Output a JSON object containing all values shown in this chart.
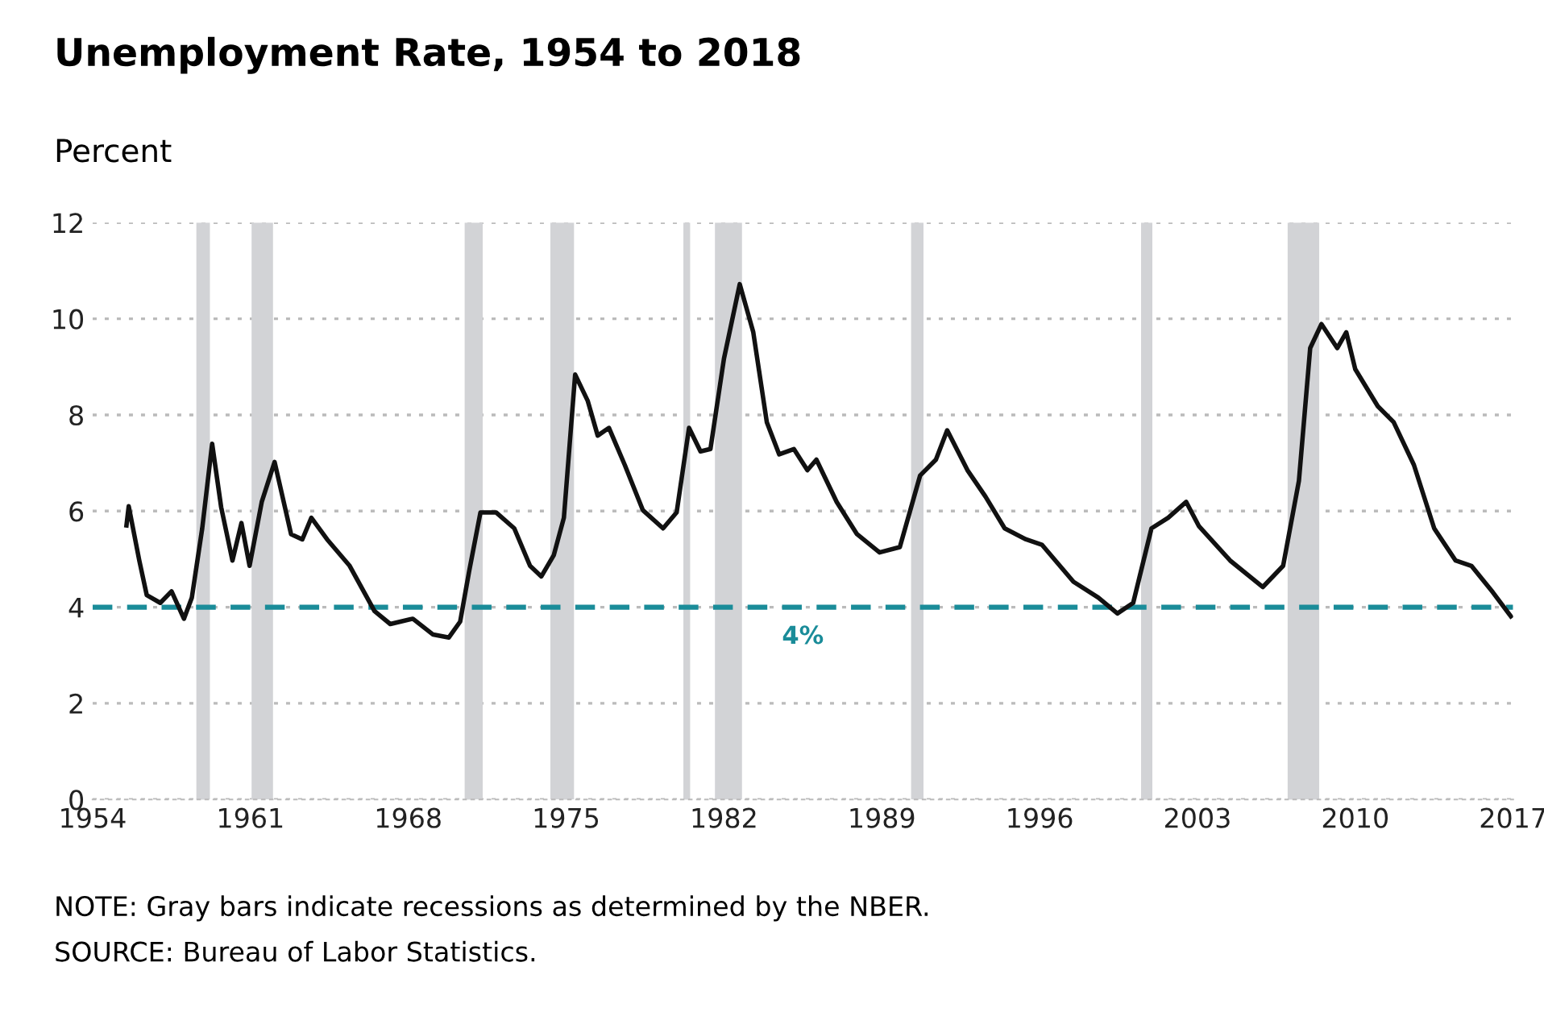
{
  "chart_data": {
    "type": "line",
    "title": "Unemployment Rate, 1954 to 2018",
    "ylabel": "Percent",
    "x": [
      1955.5,
      1955.6,
      1956.07,
      1956.4,
      1957.0,
      1957.5,
      1958.05,
      1958.4,
      1958.86,
      1959.3,
      1959.7,
      1960.2,
      1960.6,
      1960.96,
      1961.5,
      1962.07,
      1962.8,
      1963.3,
      1963.7,
      1964.4,
      1965.4,
      1966.5,
      1967.2,
      1968.2,
      1969.1,
      1969.8,
      1970.3,
      1970.7,
      1971.2,
      1971.9,
      1972.7,
      1973.4,
      1973.9,
      1974.45,
      1974.9,
      1975.4,
      1975.96,
      1976.4,
      1976.9,
      1977.6,
      1978.4,
      1979.3,
      1979.9,
      1980.45,
      1980.96,
      1981.4,
      1982.0,
      1982.7,
      1983.3,
      1983.9,
      1984.45,
      1985.1,
      1985.7,
      1986.1,
      1987.0,
      1987.9,
      1988.9,
      1989.8,
      1990.7,
      1991.4,
      1991.9,
      1992.8,
      1993.6,
      1994.45,
      1995.4,
      1996.1,
      1997.5,
      1998.6,
      1999.45,
      2000.15,
      2000.96,
      2001.7,
      2002.5,
      2003.06,
      2004.45,
      2005.9,
      2006.8,
      2007.5,
      2008.0,
      2008.5,
      2009.2,
      2009.6,
      2010.0,
      2011.0,
      2011.7,
      2012.6,
      2013.5,
      2014.45,
      2015.15,
      2016.1,
      2016.9
    ],
    "series": [
      {
        "color": "#111111",
        "values": [
          5.7,
          6.1,
          4.97,
          4.25,
          4.09,
          4.33,
          3.76,
          4.2,
          5.64,
          7.4,
          6.08,
          4.97,
          5.75,
          4.86,
          6.19,
          7.02,
          5.52,
          5.41,
          5.86,
          5.41,
          4.86,
          3.92,
          3.65,
          3.76,
          3.43,
          3.37,
          3.7,
          4.75,
          5.97,
          5.97,
          5.64,
          4.86,
          4.64,
          5.08,
          5.86,
          8.84,
          8.29,
          7.57,
          7.73,
          6.96,
          6.02,
          5.64,
          5.97,
          7.73,
          7.24,
          7.29,
          9.17,
          10.72,
          9.72,
          7.85,
          7.18,
          7.29,
          6.85,
          7.07,
          6.19,
          5.52,
          5.14,
          5.25,
          6.74,
          7.07,
          7.68,
          6.85,
          6.3,
          5.64,
          5.41,
          5.3,
          4.53,
          4.2,
          3.87,
          4.09,
          5.64,
          5.86,
          6.19,
          5.69,
          4.97,
          4.42,
          4.86,
          6.63,
          9.39,
          9.89,
          9.39,
          9.72,
          8.95,
          8.18,
          7.85,
          6.96,
          5.64,
          4.97,
          4.86,
          4.31,
          3.81
        ]
      }
    ],
    "xlim": [
      1954,
      2017
    ],
    "xticks": [
      1954,
      1961,
      1968,
      1975,
      1982,
      1989,
      1996,
      2003,
      2010,
      2017
    ],
    "ylim": [
      0,
      12
    ],
    "yticks": [
      0,
      2,
      4,
      6,
      8,
      10,
      12
    ],
    "grid": "y",
    "marker": "none",
    "line_style": "solid",
    "ref_lines": [
      {
        "axis": "y",
        "value": 4,
        "label": "4%",
        "color": "#1a8c99",
        "line_style": "dashed"
      }
    ],
    "bands": [
      {
        "axis": "x",
        "from": 1958.6,
        "to": 1959.2,
        "color": "#d2d3d6"
      },
      {
        "axis": "x",
        "from": 1961.05,
        "to": 1962.0,
        "color": "#d2d3d6"
      },
      {
        "axis": "x",
        "from": 1970.5,
        "to": 1971.3,
        "color": "#d2d3d6"
      },
      {
        "axis": "x",
        "from": 1974.3,
        "to": 1975.35,
        "color": "#d2d3d6"
      },
      {
        "axis": "x",
        "from": 1980.2,
        "to": 1980.5,
        "color": "#d2d3d6"
      },
      {
        "axis": "x",
        "from": 1981.6,
        "to": 1982.8,
        "color": "#d2d3d6"
      },
      {
        "axis": "x",
        "from": 1990.3,
        "to": 1990.85,
        "color": "#d2d3d6"
      },
      {
        "axis": "x",
        "from": 2000.5,
        "to": 2001.0,
        "color": "#d2d3d6"
      },
      {
        "axis": "x",
        "from": 2007.0,
        "to": 2008.4,
        "color": "#d2d3d6"
      }
    ],
    "annotations": [
      "NOTE: Gray bars indicate recessions as determined by the NBER.",
      "SOURCE: Bureau of Labor Statistics."
    ]
  }
}
